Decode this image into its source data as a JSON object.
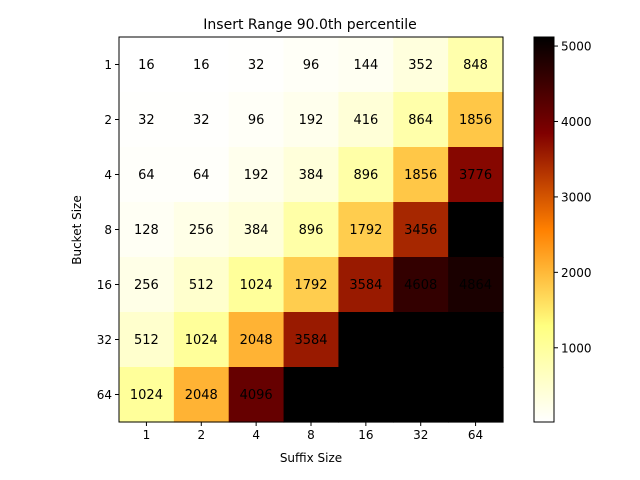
{
  "chart_data": {
    "type": "heatmap",
    "title": "Insert Range 90.0th percentile",
    "xlabel": "Suffix Size",
    "ylabel": "Bucket Size",
    "x_categories": [
      "1",
      "2",
      "4",
      "8",
      "16",
      "32",
      "64"
    ],
    "y_categories": [
      "1",
      "2",
      "4",
      "8",
      "16",
      "32",
      "64"
    ],
    "values": [
      [
        16,
        16,
        32,
        96,
        144,
        352,
        848
      ],
      [
        32,
        32,
        96,
        192,
        416,
        864,
        1856
      ],
      [
        64,
        64,
        192,
        384,
        896,
        1856,
        3776
      ],
      [
        128,
        256,
        384,
        896,
        1792,
        3456,
        5120
      ],
      [
        256,
        512,
        1024,
        1792,
        3584,
        4608,
        4864
      ],
      [
        512,
        1024,
        2048,
        3584,
        5120,
        5120,
        5120
      ],
      [
        1024,
        2048,
        4096,
        5120,
        5120,
        5120,
        5120
      ]
    ],
    "colormap": "afmhot_r",
    "vmin": 16,
    "vmax": 5120,
    "colorbar_ticks": [
      1000,
      2000,
      3000,
      4000,
      5000
    ],
    "annotation_color": "#0000ff",
    "grid": false
  }
}
